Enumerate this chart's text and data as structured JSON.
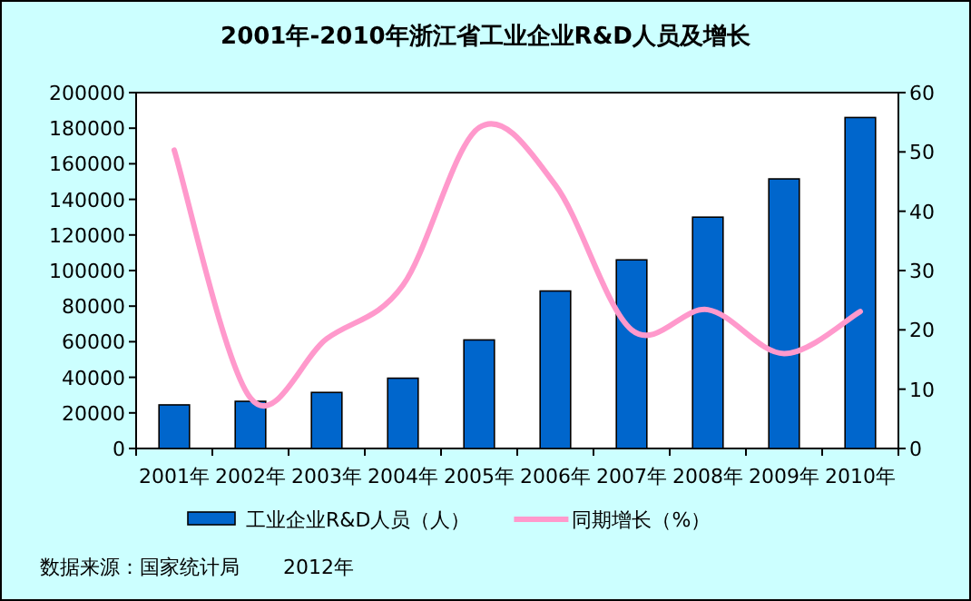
{
  "chart_data": {
    "type": "bar",
    "title": "2001年-2010年浙江省工业企业R&D人员及增长",
    "categories": [
      "2001年",
      "2002年",
      "2003年",
      "2004年",
      "2005年",
      "2006年",
      "2007年",
      "2008年",
      "2009年",
      "2010年"
    ],
    "series": [
      {
        "name": "工业企业R&D人员（人）",
        "color": "#0066cc",
        "values": [
          24500,
          26500,
          31500,
          39500,
          61000,
          88500,
          106000,
          130000,
          151500,
          186000
        ]
      },
      {
        "name": "同期增长（%）",
        "type": "line",
        "axis": "y2",
        "color": "#ff99cc",
        "values": [
          50.3,
          8.5,
          18.5,
          27.5,
          54.1,
          44.4,
          20,
          23.4,
          16,
          23.1
        ]
      }
    ],
    "ylim": [
      0,
      200000
    ],
    "yticks": [
      0,
      20000,
      40000,
      60000,
      80000,
      100000,
      120000,
      140000,
      160000,
      180000,
      200000
    ],
    "y2lim": [
      0,
      60
    ],
    "y2ticks": [
      0,
      10,
      20,
      30,
      40,
      50,
      60
    ],
    "legend": "bottom",
    "grid": false,
    "marker": "none",
    "line_style": "solid",
    "annotations": [
      "数据来源：国家统计局",
      "2012年"
    ]
  }
}
